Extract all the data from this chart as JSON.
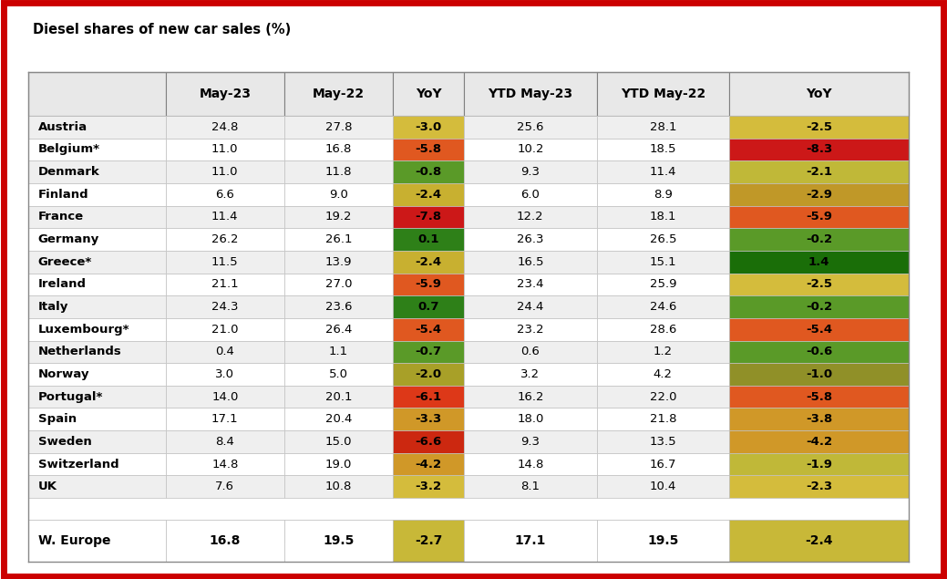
{
  "title": "Diesel shares of new car sales (%)",
  "columns": [
    "",
    "May-23",
    "May-22",
    "YoY",
    "YTD May-23",
    "YTD May-22",
    "YoY"
  ],
  "rows": [
    [
      "Austria",
      "24.8",
      "27.8",
      "-3.0",
      "25.6",
      "28.1",
      "-2.5"
    ],
    [
      "Belgium*",
      "11.0",
      "16.8",
      "-5.8",
      "10.2",
      "18.5",
      "-8.3"
    ],
    [
      "Denmark",
      "11.0",
      "11.8",
      "-0.8",
      "9.3",
      "11.4",
      "-2.1"
    ],
    [
      "Finland",
      "6.6",
      "9.0",
      "-2.4",
      "6.0",
      "8.9",
      "-2.9"
    ],
    [
      "France",
      "11.4",
      "19.2",
      "-7.8",
      "12.2",
      "18.1",
      "-5.9"
    ],
    [
      "Germany",
      "26.2",
      "26.1",
      "0.1",
      "26.3",
      "26.5",
      "-0.2"
    ],
    [
      "Greece*",
      "11.5",
      "13.9",
      "-2.4",
      "16.5",
      "15.1",
      "1.4"
    ],
    [
      "Ireland",
      "21.1",
      "27.0",
      "-5.9",
      "23.4",
      "25.9",
      "-2.5"
    ],
    [
      "Italy",
      "24.3",
      "23.6",
      "0.7",
      "24.4",
      "24.6",
      "-0.2"
    ],
    [
      "Luxembourg*",
      "21.0",
      "26.4",
      "-5.4",
      "23.2",
      "28.6",
      "-5.4"
    ],
    [
      "Netherlands",
      "0.4",
      "1.1",
      "-0.7",
      "0.6",
      "1.2",
      "-0.6"
    ],
    [
      "Norway",
      "3.0",
      "5.0",
      "-2.0",
      "3.2",
      "4.2",
      "-1.0"
    ],
    [
      "Portugal*",
      "14.0",
      "20.1",
      "-6.1",
      "16.2",
      "22.0",
      "-5.8"
    ],
    [
      "Spain",
      "17.1",
      "20.4",
      "-3.3",
      "18.0",
      "21.8",
      "-3.8"
    ],
    [
      "Sweden",
      "8.4",
      "15.0",
      "-6.6",
      "9.3",
      "13.5",
      "-4.2"
    ],
    [
      "Switzerland",
      "14.8",
      "19.0",
      "-4.2",
      "14.8",
      "16.7",
      "-1.9"
    ],
    [
      "UK",
      "7.6",
      "10.8",
      "-3.2",
      "8.1",
      "10.4",
      "-2.3"
    ]
  ],
  "summary": [
    "W. Europe",
    "16.8",
    "19.5",
    "-2.7",
    "17.1",
    "19.5",
    "-2.4"
  ],
  "yoy_colors_col3": {
    "Austria": "#d4bc3c",
    "Belgium*": "#e05820",
    "Denmark": "#5a9a28",
    "Finland": "#c8b030",
    "France": "#cc1818",
    "Germany": "#2e8018",
    "Greece*": "#c8b030",
    "Ireland": "#e05820",
    "Italy": "#2e8018",
    "Luxembourg*": "#e05820",
    "Netherlands": "#5a9a28",
    "Norway": "#a8a028",
    "Portugal*": "#dd3818",
    "Spain": "#d09828",
    "Sweden": "#cc2810",
    "Switzerland": "#d09828",
    "UK": "#d4bc3c"
  },
  "yoy_colors_col6": {
    "Austria": "#d4bc3c",
    "Belgium*": "#cc1818",
    "Denmark": "#c0b838",
    "Finland": "#c09828",
    "France": "#e05820",
    "Germany": "#5a9a28",
    "Greece*": "#1a6e08",
    "Ireland": "#d4bc3c",
    "Italy": "#5a9a28",
    "Luxembourg*": "#e05820",
    "Netherlands": "#5a9a28",
    "Norway": "#909028",
    "Portugal*": "#e05820",
    "Spain": "#d09828",
    "Sweden": "#d09828",
    "Switzerland": "#c0b838",
    "UK": "#d4bc3c"
  },
  "summary_yoy_col3_color": "#c8b838",
  "summary_yoy_col6_color": "#c8b838",
  "outer_border_color": "#cc0000",
  "cell_border_color": "#c0c0c0",
  "header_border_color": "#808080"
}
